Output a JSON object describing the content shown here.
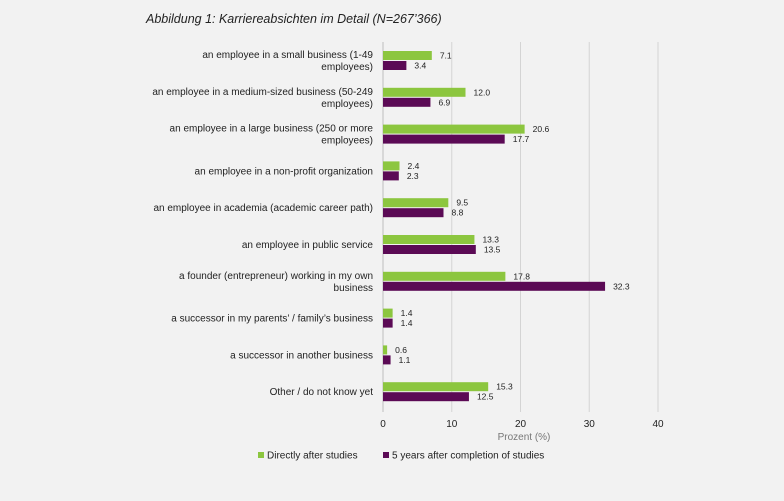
{
  "figure_title": "Abbildung 1: Karriereabsichten im Detail (N=267’366)",
  "colors": {
    "series1": "#8cc63f",
    "series2": "#5b0a55",
    "grid": "#d4d4d4",
    "background": "#f2f2f2"
  },
  "chart_data": {
    "type": "bar",
    "orientation": "horizontal",
    "title": "Abbildung 1: Karriereabsichten im Detail (N=267’366)",
    "xlabel": "Prozent (%)",
    "ylabel": "",
    "xlim": [
      0,
      40
    ],
    "xticks": [
      0,
      10,
      20,
      30,
      40
    ],
    "grid": "vertical",
    "legend_position": "bottom",
    "categories": [
      [
        "an employee in a small business (1-49",
        "employees)"
      ],
      [
        "an employee in a medium-sized business (50-249",
        "employees)"
      ],
      [
        "an employee in a large business (250 or more",
        "employees)"
      ],
      [
        "an employee in a non-profit organization"
      ],
      [
        "an employee in academia (academic career path)"
      ],
      [
        "an employee in public service"
      ],
      [
        "a founder (entrepreneur) working in my own",
        "business"
      ],
      [
        "a successor in my parents’ / family’s business"
      ],
      [
        "a successor in another business"
      ],
      [
        "Other / do not know yet"
      ]
    ],
    "series": [
      {
        "name": "Directly after studies",
        "color": "#8cc63f",
        "values": [
          7.1,
          12.0,
          20.6,
          2.4,
          9.5,
          13.3,
          17.8,
          1.4,
          0.6,
          15.3
        ]
      },
      {
        "name": "5 years after completion of studies",
        "color": "#5b0a55",
        "values": [
          3.4,
          6.9,
          17.7,
          2.3,
          8.8,
          13.5,
          32.3,
          1.4,
          1.1,
          12.5
        ]
      }
    ]
  }
}
